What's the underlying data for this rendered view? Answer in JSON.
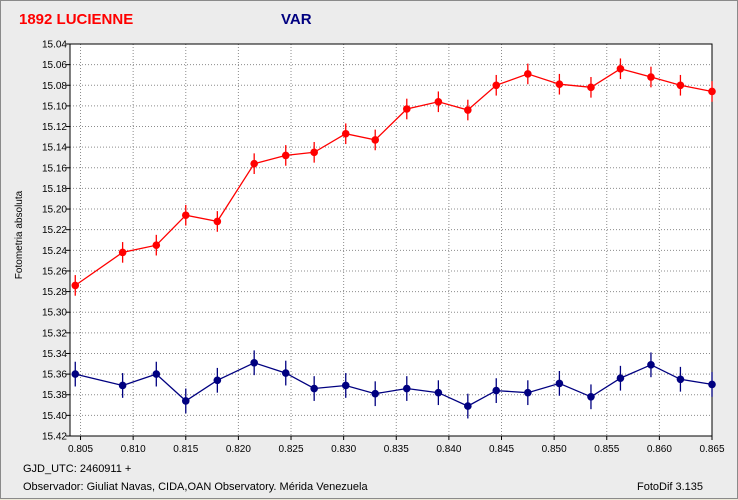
{
  "header": {
    "object_name": "1892 LUCIENNE",
    "var_label": "VAR"
  },
  "footer": {
    "gjd": "GJD_UTC: 2460911 +",
    "observer": "Observador: Giuliat Navas, CIDA,OAN Observatory. Mérida Venezuela",
    "software": "FotoDif 3.135"
  },
  "chart_data": {
    "type": "scatter",
    "ylabel": "Fotometria absoluta",
    "xlim": [
      0.804,
      0.865
    ],
    "ylim": [
      15.04,
      15.42
    ],
    "y_inverted": true,
    "grid": true,
    "x_ticks": [
      "0.805",
      "0.810",
      "0.815",
      "0.820",
      "0.825",
      "0.830",
      "0.835",
      "0.840",
      "0.845",
      "0.850",
      "0.855",
      "0.860",
      "0.865"
    ],
    "y_ticks": [
      "15.04",
      "15.06",
      "15.08",
      "15.10",
      "15.12",
      "15.14",
      "15.16",
      "15.18",
      "15.20",
      "15.22",
      "15.24",
      "15.26",
      "15.28",
      "15.30",
      "15.32",
      "15.34",
      "15.36",
      "15.38",
      "15.40",
      "15.42"
    ],
    "series": [
      {
        "name": "1892 LUCIENNE",
        "color": "#ff0000",
        "x": [
          0.8045,
          0.809,
          0.8122,
          0.815,
          0.818,
          0.8215,
          0.8245,
          0.8272,
          0.8302,
          0.833,
          0.836,
          0.839,
          0.8418,
          0.8445,
          0.8475,
          0.8505,
          0.8535,
          0.8563,
          0.8592,
          0.862,
          0.865
        ],
        "y": [
          15.274,
          15.242,
          15.235,
          15.206,
          15.212,
          15.156,
          15.148,
          15.145,
          15.127,
          15.133,
          15.103,
          15.096,
          15.104,
          15.08,
          15.069,
          15.079,
          15.082,
          15.064,
          15.072,
          15.08,
          15.086
        ],
        "err": [
          0.01,
          0.01,
          0.01,
          0.01,
          0.01,
          0.01,
          0.01,
          0.01,
          0.01,
          0.01,
          0.01,
          0.01,
          0.01,
          0.01,
          0.01,
          0.01,
          0.01,
          0.01,
          0.01,
          0.01,
          0.01
        ]
      },
      {
        "name": "VAR",
        "color": "#000080",
        "x": [
          0.8045,
          0.809,
          0.8122,
          0.815,
          0.818,
          0.8215,
          0.8245,
          0.8272,
          0.8302,
          0.833,
          0.836,
          0.839,
          0.8418,
          0.8445,
          0.8475,
          0.8505,
          0.8535,
          0.8563,
          0.8592,
          0.862,
          0.865
        ],
        "y": [
          15.36,
          15.371,
          15.36,
          15.386,
          15.366,
          15.349,
          15.359,
          15.374,
          15.371,
          15.379,
          15.374,
          15.378,
          15.391,
          15.376,
          15.378,
          15.369,
          15.382,
          15.364,
          15.351,
          15.365,
          15.37
        ],
        "err": [
          0.012,
          0.012,
          0.012,
          0.012,
          0.012,
          0.012,
          0.012,
          0.012,
          0.012,
          0.012,
          0.012,
          0.012,
          0.012,
          0.012,
          0.012,
          0.012,
          0.012,
          0.012,
          0.012,
          0.012,
          0.012
        ]
      }
    ]
  }
}
